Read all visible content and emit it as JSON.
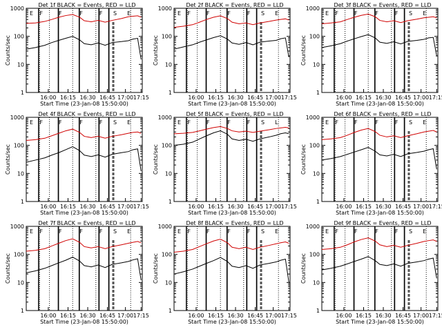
{
  "chart_data": [
    {
      "type": "line",
      "title": "Det 1f BLACK = Events, RED = LLD",
      "xlabel": "Start Time (23-Jan-08 15:50:00)",
      "ylabel": "Counts/sec",
      "log_y": true,
      "ylim": [
        1,
        1000
      ],
      "xlim": [
        0,
        100
      ],
      "yticks": [
        "1",
        "10",
        "100",
        "1000"
      ],
      "xticks": [
        "16:00",
        "16:15",
        "16:30",
        "16:45",
        "17:00",
        "17:15"
      ],
      "flags": [
        "E",
        "F",
        "F",
        "F",
        "F",
        "S",
        "E"
      ],
      "series": [
        {
          "name": "Events",
          "color": "#000000",
          "x": [
            0,
            8,
            16,
            22,
            28,
            34,
            40,
            46,
            50,
            56,
            62,
            68,
            74,
            82,
            88,
            92,
            96,
            99
          ],
          "values": [
            35,
            40,
            48,
            60,
            72,
            85,
            100,
            75,
            55,
            50,
            58,
            48,
            60,
            65,
            70,
            80,
            85,
            15
          ]
        },
        {
          "name": "LLD",
          "color": "#d00000",
          "x": [
            0,
            8,
            16,
            22,
            28,
            34,
            40,
            46,
            50,
            56,
            62,
            68,
            74,
            82,
            88,
            92,
            96,
            99
          ],
          "values": [
            290,
            300,
            340,
            400,
            480,
            550,
            600,
            480,
            360,
            330,
            370,
            320,
            370,
            430,
            500,
            520,
            540,
            480
          ]
        }
      ]
    },
    {
      "type": "line",
      "title": "Det 2f BLACK = Events, RED = LLD",
      "xlabel": "Start Time (23-Jan-08 15:50:00)",
      "ylabel": "Counts/sec",
      "log_y": true,
      "ylim": [
        1,
        1000
      ],
      "xlim": [
        0,
        100
      ],
      "yticks": [
        "1",
        "10",
        "100",
        "1000"
      ],
      "xticks": [
        "16:00",
        "16:15",
        "16:30",
        "16:45",
        "17:00",
        "17:15"
      ],
      "flags": [
        "E",
        "F",
        "F",
        "F",
        "F",
        "S",
        "E"
      ],
      "series": [
        {
          "name": "Events",
          "color": "#000000",
          "x": [
            0,
            8,
            16,
            22,
            28,
            34,
            40,
            46,
            50,
            56,
            62,
            68,
            74,
            82,
            88,
            92,
            96,
            99
          ],
          "values": [
            35,
            42,
            50,
            62,
            75,
            90,
            105,
            80,
            58,
            52,
            60,
            50,
            62,
            68,
            72,
            82,
            88,
            18
          ]
        },
        {
          "name": "LLD",
          "color": "#d00000",
          "x": [
            0,
            8,
            16,
            22,
            28,
            34,
            40,
            46,
            50,
            56,
            62,
            68,
            74,
            82,
            88,
            92,
            96,
            99
          ],
          "values": [
            210,
            230,
            260,
            320,
            400,
            480,
            540,
            430,
            320,
            280,
            300,
            260,
            300,
            340,
            380,
            400,
            420,
            380
          ]
        }
      ]
    },
    {
      "type": "line",
      "title": "Det 3f BLACK = Events, RED = LLD",
      "xlabel": "Start Time (23-Jan-08 15:50:00)",
      "ylabel": "Counts/sec",
      "log_y": true,
      "ylim": [
        1,
        1000
      ],
      "xlim": [
        0,
        100
      ],
      "yticks": [
        "1",
        "10",
        "100",
        "1000"
      ],
      "xticks": [
        "16:00",
        "16:15",
        "16:30",
        "16:45",
        "17:00",
        "17:15"
      ],
      "flags": [
        "E",
        "F",
        "F",
        "F",
        "F",
        "S",
        "E"
      ],
      "series": [
        {
          "name": "Events",
          "color": "#000000",
          "x": [
            0,
            8,
            16,
            22,
            28,
            34,
            40,
            46,
            50,
            56,
            62,
            68,
            74,
            82,
            88,
            92,
            96,
            99
          ],
          "values": [
            40,
            46,
            55,
            68,
            82,
            98,
            115,
            88,
            62,
            56,
            64,
            54,
            66,
            72,
            78,
            88,
            92,
            20
          ]
        },
        {
          "name": "LLD",
          "color": "#d00000",
          "x": [
            0,
            8,
            16,
            22,
            28,
            34,
            40,
            46,
            50,
            56,
            62,
            68,
            74,
            82,
            88,
            92,
            96,
            99
          ],
          "values": [
            280,
            300,
            330,
            400,
            480,
            560,
            620,
            500,
            370,
            330,
            360,
            310,
            360,
            410,
            460,
            480,
            500,
            460
          ]
        }
      ]
    },
    {
      "type": "line",
      "title": "Det 4f BLACK = Events, RED = LLD",
      "xlabel": "Start Time (23-Jan-08 15:50:00)",
      "ylabel": "Counts/sec",
      "log_y": true,
      "ylim": [
        1,
        1000
      ],
      "xlim": [
        0,
        100
      ],
      "yticks": [
        "1",
        "10",
        "100",
        "1000"
      ],
      "xticks": [
        "16:00",
        "16:15",
        "16:30",
        "16:45",
        "17:00",
        "17:15"
      ],
      "flags": [
        "E",
        "F",
        "F",
        "F",
        "F",
        "S",
        "E"
      ],
      "series": [
        {
          "name": "Events",
          "color": "#000000",
          "x": [
            0,
            8,
            16,
            22,
            28,
            34,
            40,
            46,
            50,
            56,
            62,
            68,
            74,
            82,
            88,
            92,
            96,
            99
          ],
          "values": [
            25,
            30,
            36,
            45,
            55,
            70,
            90,
            65,
            45,
            40,
            46,
            38,
            48,
            55,
            60,
            70,
            75,
            12
          ]
        },
        {
          "name": "LLD",
          "color": "#d00000",
          "x": [
            0,
            8,
            16,
            22,
            28,
            34,
            40,
            46,
            50,
            56,
            62,
            68,
            74,
            82,
            88,
            92,
            96,
            99
          ],
          "values": [
            150,
            160,
            180,
            220,
            270,
            330,
            380,
            290,
            210,
            190,
            210,
            180,
            210,
            240,
            270,
            290,
            300,
            270
          ]
        }
      ]
    },
    {
      "type": "line",
      "title": "Det 5f BLACK = Events, RED = LLD",
      "xlabel": "Start Time (23-Jan-08 15:50:00)",
      "ylabel": "Counts/sec",
      "log_y": true,
      "ylim": [
        1,
        1000
      ],
      "xlim": [
        0,
        100
      ],
      "yticks": [
        "1",
        "10",
        "100",
        "1000"
      ],
      "xticks": [
        "16:00",
        "16:15",
        "16:30",
        "16:45",
        "17:00",
        "17:15"
      ],
      "flags": [
        "E",
        "F",
        "F",
        "F",
        "F",
        "S",
        "L"
      ],
      "series": [
        {
          "name": "Events",
          "color": "#000000",
          "x": [
            0,
            8,
            16,
            22,
            28,
            34,
            40,
            46,
            50,
            56,
            62,
            68,
            74,
            82,
            88,
            92,
            96,
            99
          ],
          "values": [
            100,
            110,
            130,
            170,
            220,
            280,
            330,
            250,
            170,
            150,
            165,
            140,
            170,
            200,
            230,
            260,
            280,
            260
          ]
        },
        {
          "name": "LLD",
          "color": "#d00000",
          "x": [
            0,
            8,
            16,
            22,
            28,
            34,
            40,
            46,
            50,
            56,
            62,
            68,
            74,
            82,
            88,
            92,
            96,
            99
          ],
          "values": [
            260,
            270,
            290,
            330,
            380,
            430,
            470,
            400,
            330,
            300,
            320,
            290,
            320,
            360,
            400,
            420,
            440,
            420
          ]
        }
      ]
    },
    {
      "type": "line",
      "title": "Det 6f BLACK = Events, RED = LLD",
      "xlabel": "Start Time (23-Jan-08 15:50:00)",
      "ylabel": "Counts/sec",
      "log_y": true,
      "ylim": [
        1,
        1000
      ],
      "xlim": [
        0,
        100
      ],
      "yticks": [
        "1",
        "10",
        "100",
        "1000"
      ],
      "xticks": [
        "16:00",
        "16:15",
        "16:30",
        "16:45",
        "17:00",
        "17:15"
      ],
      "flags": [
        "E",
        "F",
        "F",
        "F",
        "F",
        "S",
        "E"
      ],
      "series": [
        {
          "name": "Events",
          "color": "#000000",
          "x": [
            0,
            8,
            16,
            22,
            28,
            34,
            40,
            46,
            50,
            56,
            62,
            68,
            74,
            82,
            88,
            92,
            96,
            99
          ],
          "values": [
            30,
            34,
            40,
            48,
            58,
            70,
            85,
            62,
            46,
            42,
            48,
            40,
            50,
            56,
            62,
            70,
            76,
            14
          ]
        },
        {
          "name": "LLD",
          "color": "#d00000",
          "x": [
            0,
            8,
            16,
            22,
            28,
            34,
            40,
            46,
            50,
            56,
            62,
            68,
            74,
            82,
            88,
            92,
            96,
            99
          ],
          "values": [
            160,
            170,
            190,
            230,
            290,
            350,
            400,
            310,
            230,
            200,
            220,
            190,
            220,
            260,
            300,
            320,
            340,
            300
          ]
        }
      ]
    },
    {
      "type": "line",
      "title": "Det 7f BLACK = Events, RED = LLD",
      "xlabel": "Start Time (23-Jan-08 15:50:00)",
      "ylabel": "Counts/sec",
      "log_y": true,
      "ylim": [
        1,
        1000
      ],
      "xlim": [
        0,
        100
      ],
      "yticks": [
        "1",
        "10",
        "100",
        "1000"
      ],
      "xticks": [
        "16:00",
        "16:15",
        "16:30",
        "16:45",
        "17:00",
        "17:15"
      ],
      "flags": [
        "E",
        "F",
        "F",
        "F",
        "F",
        "S",
        "E"
      ],
      "series": [
        {
          "name": "Events",
          "color": "#000000",
          "x": [
            0,
            8,
            16,
            22,
            28,
            34,
            40,
            46,
            50,
            56,
            62,
            68,
            74,
            82,
            88,
            92,
            96,
            99
          ],
          "values": [
            22,
            26,
            32,
            40,
            50,
            62,
            80,
            58,
            40,
            36,
            42,
            34,
            44,
            50,
            56,
            64,
            70,
            12
          ]
        },
        {
          "name": "LLD",
          "color": "#d00000",
          "x": [
            0,
            8,
            16,
            22,
            28,
            34,
            40,
            46,
            50,
            56,
            62,
            68,
            74,
            82,
            88,
            92,
            96,
            99
          ],
          "values": [
            130,
            140,
            160,
            200,
            250,
            310,
            360,
            270,
            190,
            170,
            190,
            160,
            190,
            220,
            250,
            270,
            290,
            260
          ]
        }
      ]
    },
    {
      "type": "line",
      "title": "Det 8f BLACK = Events, RED = LLD",
      "xlabel": "Start Time (23-Jan-08 15:50:00)",
      "ylabel": "Counts/sec",
      "log_y": true,
      "ylim": [
        1,
        1000
      ],
      "xlim": [
        0,
        100
      ],
      "yticks": [
        "1",
        "10",
        "100",
        "1000"
      ],
      "xticks": [
        "16:00",
        "16:15",
        "16:30",
        "16:45",
        "17:00",
        "17:15"
      ],
      "flags": [
        "E",
        "F",
        "F",
        "F",
        "F",
        "S",
        "E"
      ],
      "series": [
        {
          "name": "Events",
          "color": "#000000",
          "x": [
            0,
            8,
            16,
            22,
            28,
            34,
            40,
            46,
            50,
            56,
            62,
            68,
            74,
            82,
            88,
            92,
            96,
            99
          ],
          "values": [
            20,
            24,
            30,
            38,
            48,
            60,
            78,
            56,
            38,
            34,
            40,
            32,
            42,
            48,
            54,
            62,
            68,
            10
          ]
        },
        {
          "name": "LLD",
          "color": "#d00000",
          "x": [
            0,
            8,
            16,
            22,
            28,
            34,
            40,
            46,
            50,
            56,
            62,
            68,
            74,
            82,
            88,
            92,
            96,
            99
          ],
          "values": [
            120,
            130,
            150,
            190,
            240,
            300,
            350,
            260,
            180,
            160,
            180,
            150,
            180,
            210,
            240,
            260,
            280,
            250
          ]
        }
      ]
    },
    {
      "type": "line",
      "title": "Det 9f BLACK = Events, RED = LLD",
      "xlabel": "Start Time (23-Jan-08 15:50:00)",
      "ylabel": "Counts/sec",
      "log_y": true,
      "ylim": [
        1,
        1000
      ],
      "xlim": [
        0,
        100
      ],
      "yticks": [
        "1",
        "10",
        "100",
        "1000"
      ],
      "xticks": [
        "16:00",
        "16:15",
        "16:30",
        "16:45",
        "17:00",
        "17:15"
      ],
      "flags": [
        "E",
        "F",
        "F",
        "F",
        "F",
        "S",
        "E"
      ],
      "series": [
        {
          "name": "Events",
          "color": "#000000",
          "x": [
            0,
            8,
            16,
            22,
            28,
            34,
            40,
            46,
            50,
            56,
            62,
            68,
            74,
            82,
            88,
            92,
            96,
            99
          ],
          "values": [
            28,
            32,
            38,
            46,
            56,
            68,
            84,
            60,
            44,
            40,
            46,
            38,
            48,
            54,
            60,
            68,
            74,
            14
          ]
        },
        {
          "name": "LLD",
          "color": "#d00000",
          "x": [
            0,
            8,
            16,
            22,
            28,
            34,
            40,
            46,
            50,
            56,
            62,
            68,
            74,
            82,
            88,
            92,
            96,
            99
          ],
          "values": [
            150,
            160,
            180,
            220,
            280,
            340,
            390,
            300,
            220,
            190,
            210,
            180,
            210,
            250,
            290,
            310,
            330,
            290
          ]
        }
      ]
    }
  ]
}
